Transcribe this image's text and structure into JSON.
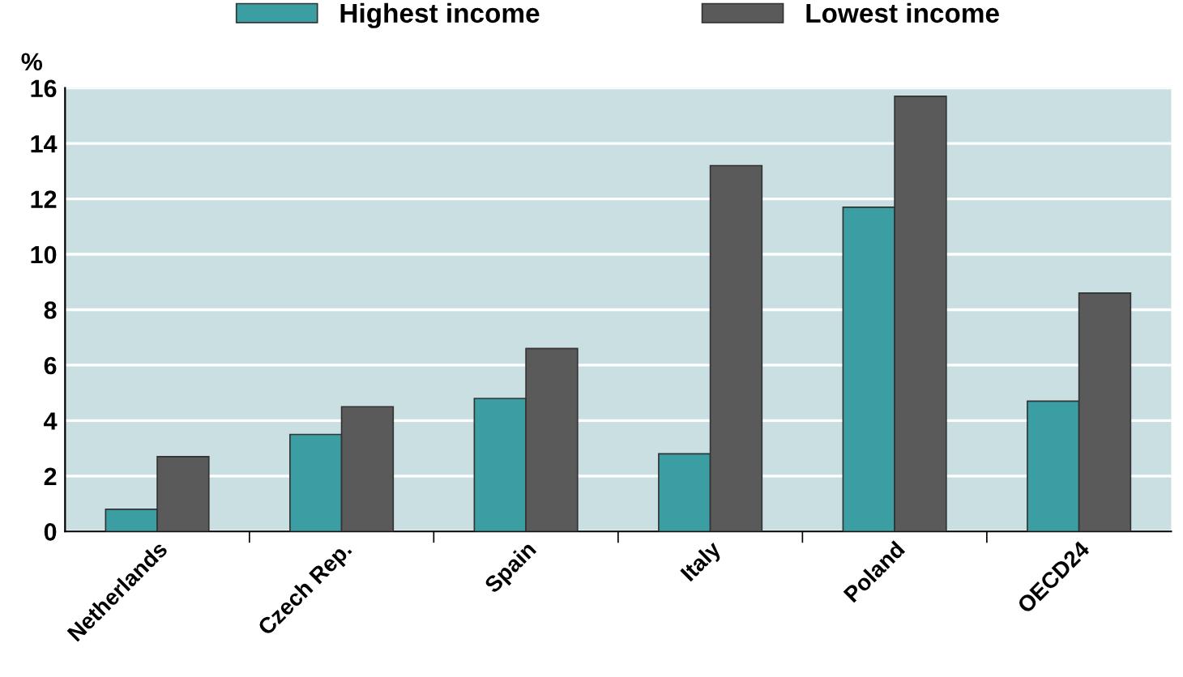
{
  "chart_data": {
    "type": "bar",
    "ylabel": "%",
    "categories": [
      "Netherlands",
      "Czech Rep.",
      "Spain",
      "Italy",
      "Poland",
      "OECD24"
    ],
    "series": [
      {
        "name": "Highest income",
        "color": "#3a9ea3",
        "values": [
          0.8,
          3.5,
          4.8,
          2.8,
          11.7,
          4.7
        ]
      },
      {
        "name": "Lowest income",
        "color": "#5a5a5a",
        "values": [
          2.7,
          4.5,
          6.6,
          13.2,
          15.7,
          8.6
        ]
      }
    ],
    "ylim": [
      0,
      16
    ],
    "yticks": [
      0,
      2,
      4,
      6,
      8,
      10,
      12,
      14,
      16
    ],
    "grid": "y",
    "legend": "top"
  }
}
